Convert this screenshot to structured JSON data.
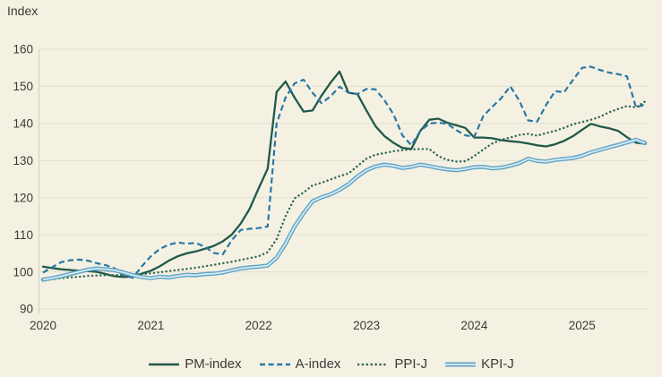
{
  "page": {
    "background": "#f5f1e2",
    "text_color": "#3a3a38",
    "grid_color": "#e2ddcf",
    "axis_color": "#d2cec0"
  },
  "chart_data": {
    "type": "line",
    "ylabel": "Index",
    "frequency": "monthly",
    "x_range_note": "Jan 2020 - Aug 2025",
    "x_tick_labels": [
      "2020",
      "2021",
      "2022",
      "2023",
      "2024",
      "2025"
    ],
    "y_ticks": [
      90,
      100,
      110,
      120,
      130,
      140,
      150,
      160
    ],
    "ylim": [
      90,
      160
    ],
    "grid": "horizontal",
    "legend_position": "bottom",
    "series": [
      {
        "name": "PM-index",
        "line_style": "solid",
        "color": "#20594a",
        "values": [
          101.4,
          101.0,
          100.7,
          100.5,
          100.3,
          100.2,
          100.0,
          99.4,
          98.8,
          98.6,
          98.8,
          99.5,
          100.3,
          101.5,
          103.0,
          104.2,
          105.0,
          105.5,
          106.2,
          107.0,
          108.2,
          110.0,
          113.0,
          117.0,
          122.5,
          127.8,
          148.5,
          151.3,
          147.0,
          143.2,
          143.5,
          147.5,
          151.0,
          154.0,
          148.3,
          147.9,
          143.5,
          139.3,
          136.6,
          134.8,
          133.4,
          133.1,
          138.0,
          141.0,
          141.3,
          140.2,
          139.5,
          138.8,
          136.2,
          136.2,
          136.0,
          135.5,
          135.2,
          135.0,
          134.6,
          134.1,
          133.8,
          134.4,
          135.3,
          136.6,
          138.3,
          139.9,
          139.2,
          138.7,
          138.0,
          136.3,
          134.8,
          134.5
        ]
      },
      {
        "name": "A-index",
        "line_style": "dashed",
        "color": "#2878a6",
        "values": [
          99.8,
          101.2,
          102.6,
          103.1,
          103.3,
          103.0,
          102.3,
          101.8,
          100.9,
          99.0,
          98.4,
          101.5,
          104.2,
          106.2,
          107.3,
          107.9,
          107.6,
          107.8,
          106.8,
          105.1,
          104.7,
          108.5,
          111.3,
          111.6,
          111.8,
          112.2,
          140.0,
          147.0,
          150.8,
          151.8,
          148.3,
          145.5,
          147.3,
          149.9,
          148.3,
          147.9,
          149.3,
          149.2,
          146.3,
          142.5,
          136.8,
          134.1,
          138.0,
          140.0,
          140.2,
          139.9,
          138.2,
          136.8,
          136.4,
          142.0,
          144.5,
          146.8,
          150.0,
          146.2,
          140.8,
          140.5,
          145.0,
          148.7,
          148.4,
          151.8,
          155.0,
          155.3,
          154.4,
          153.7,
          153.3,
          152.7,
          144.3,
          145.1
        ]
      },
      {
        "name": "PPI-J",
        "line_style": "dotted",
        "color": "#2d6554",
        "values": [
          97.8,
          98.0,
          98.3,
          98.5,
          98.7,
          98.9,
          99.0,
          99.1,
          99.1,
          99.2,
          99.3,
          99.4,
          99.6,
          99.9,
          100.2,
          100.5,
          100.8,
          101.1,
          101.5,
          101.9,
          102.3,
          102.7,
          103.2,
          103.7,
          104.2,
          105.3,
          108.8,
          115.0,
          119.8,
          121.4,
          123.3,
          124.0,
          124.9,
          125.8,
          126.5,
          128.5,
          130.5,
          131.6,
          132.0,
          132.5,
          132.8,
          133.0,
          133.1,
          133.1,
          131.2,
          130.2,
          129.7,
          129.8,
          131.2,
          133.0,
          134.6,
          135.6,
          136.2,
          136.9,
          137.2,
          136.7,
          137.4,
          138.0,
          138.8,
          139.8,
          140.4,
          141.0,
          141.8,
          143.0,
          143.9,
          144.7,
          144.3,
          145.9
        ]
      },
      {
        "name": "KPI-J",
        "line_style": "double",
        "color": "#5fa4c7",
        "inner_color": "#dcedf5",
        "values": [
          97.9,
          98.3,
          98.8,
          99.4,
          100.0,
          100.6,
          100.9,
          100.7,
          100.4,
          99.8,
          99.1,
          98.6,
          98.3,
          98.7,
          98.5,
          98.9,
          99.2,
          99.1,
          99.4,
          99.5,
          99.8,
          100.4,
          100.9,
          101.2,
          101.4,
          101.7,
          103.8,
          107.6,
          112.2,
          115.8,
          119.0,
          120.1,
          120.9,
          122.1,
          123.6,
          125.7,
          127.4,
          128.4,
          128.9,
          128.6,
          128.0,
          128.3,
          128.9,
          128.5,
          128.0,
          127.6,
          127.4,
          127.7,
          128.2,
          128.3,
          127.9,
          128.1,
          128.6,
          129.3,
          130.5,
          129.9,
          129.7,
          130.2,
          130.4,
          130.7,
          131.3,
          132.2,
          132.9,
          133.6,
          134.2,
          134.9,
          135.6,
          134.7
        ]
      }
    ]
  }
}
